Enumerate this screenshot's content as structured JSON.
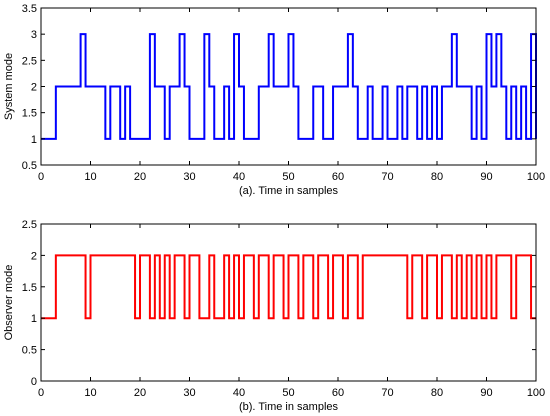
{
  "chart_data": [
    {
      "type": "line",
      "step": true,
      "title": "",
      "xlabel": "(a). Time in samples",
      "ylabel": "System mode",
      "xlim": [
        0,
        100
      ],
      "ylim": [
        0.5,
        3.5
      ],
      "x_ticks": [
        "0",
        "10",
        "20",
        "30",
        "40",
        "50",
        "60",
        "70",
        "80",
        "90",
        "100"
      ],
      "y_ticks": [
        "0.5",
        "1",
        "1.5",
        "2",
        "2.5",
        "3",
        "3.5"
      ],
      "grid": false,
      "series": [
        {
          "color": "#0000ff",
          "x": [
            0,
            3,
            8,
            9,
            13,
            14,
            16,
            17,
            18,
            22,
            23,
            25,
            26,
            28,
            29,
            30,
            33,
            34,
            35,
            37,
            38,
            39,
            40,
            41,
            44,
            46,
            47,
            50,
            51,
            52,
            55,
            57,
            59,
            62,
            63,
            64,
            66,
            67,
            69,
            70,
            72,
            73,
            74,
            76,
            77,
            78,
            79,
            80,
            81,
            83,
            84,
            87,
            88,
            89,
            90,
            91,
            92,
            93,
            94,
            95,
            96,
            97,
            98,
            99,
            100
          ],
          "y": [
            1,
            2,
            3,
            2,
            1,
            2,
            1,
            2,
            1,
            3,
            2,
            1,
            2,
            3,
            2,
            1,
            3,
            2,
            1,
            2,
            1,
            3,
            2,
            1,
            2,
            3,
            2,
            3,
            2,
            1,
            2,
            1,
            2,
            3,
            2,
            1,
            2,
            1,
            2,
            1,
            2,
            1,
            2,
            1,
            2,
            1,
            2,
            1,
            2,
            3,
            2,
            1,
            2,
            1,
            3,
            2,
            3,
            2,
            1,
            2,
            1,
            2,
            1,
            3,
            1
          ]
        }
      ]
    },
    {
      "type": "line",
      "step": true,
      "title": "",
      "xlabel": "(b).  Time in samples",
      "ylabel": "Observer mode",
      "xlim": [
        0,
        100
      ],
      "ylim": [
        0,
        2.5
      ],
      "x_ticks": [
        "0",
        "10",
        "20",
        "30",
        "40",
        "50",
        "60",
        "70",
        "80",
        "90",
        "100"
      ],
      "y_ticks": [
        "0",
        "0.5",
        "1",
        "1.5",
        "2",
        "2.5"
      ],
      "grid": false,
      "series": [
        {
          "color": "#ff0000",
          "x": [
            0,
            3,
            9,
            10,
            19,
            20,
            22,
            23,
            24,
            25,
            26,
            27,
            29,
            30,
            32,
            34,
            35,
            37,
            38,
            39,
            40,
            41,
            43,
            44,
            46,
            47,
            49,
            50,
            52,
            53,
            55,
            56,
            58,
            59,
            61,
            62,
            64,
            65,
            74,
            75,
            77,
            78,
            80,
            81,
            83,
            84,
            85,
            86,
            87,
            88,
            89,
            90,
            91,
            92,
            95,
            96,
            99,
            100
          ],
          "y": [
            1,
            2,
            1,
            2,
            1,
            2,
            1,
            2,
            1,
            2,
            1,
            2,
            1,
            2,
            1,
            2,
            1,
            2,
            1,
            2,
            1,
            2,
            1,
            2,
            1,
            2,
            1,
            2,
            1,
            2,
            1,
            2,
            1,
            2,
            1,
            2,
            1,
            2,
            1,
            2,
            1,
            2,
            1,
            2,
            1,
            2,
            1,
            2,
            1,
            2,
            1,
            2,
            1,
            2,
            1,
            2,
            1,
            1
          ]
        }
      ]
    }
  ]
}
